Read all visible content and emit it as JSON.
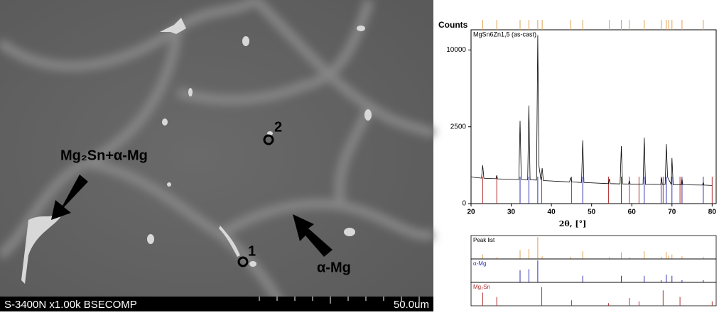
{
  "micrograph": {
    "label_phase_mix": "Mg₂Sn+α-Mg",
    "label_matrix": "α-Mg",
    "point_1": "1",
    "point_2": "2",
    "info": "S-3400N x1.00k BSECOMP",
    "scale": "50.0um"
  },
  "chart_data": {
    "type": "line",
    "title": "MgSn6Zn1,5 (as-cast)",
    "y_label": "Counts",
    "x_label": "2θ, [°]",
    "scale": "sqrt",
    "x": [
      20,
      22.6,
      22.9,
      23.2,
      26.2,
      26.4,
      26.6,
      31.9,
      32.2,
      32.5,
      34.1,
      34.4,
      34.7,
      36.3,
      36.6,
      36.9,
      37.4,
      37.7,
      38.0,
      44.5,
      44.8,
      45.1,
      47.5,
      47.8,
      48.1,
      54.2,
      54.4,
      54.6,
      57.1,
      57.4,
      57.7,
      59.2,
      59.4,
      59.6,
      62.8,
      63.1,
      63.4,
      67.2,
      67.4,
      67.6,
      68.3,
      68.6,
      68.9,
      69.8,
      70.0,
      70.3,
      72.3,
      72.5,
      72.7,
      77.6,
      77.8,
      78.0,
      80
    ],
    "series": [
      {
        "color": "#000000",
        "values": [
          300,
          275,
          625,
          272,
          262,
          340,
          260,
          245,
          2900,
          245,
          240,
          4080,
          240,
          235,
          12000,
          600,
          240,
          530,
          225,
          200,
          280,
          198,
          190,
          1700,
          188,
          170,
          260,
          170,
          165,
          1400,
          165,
          162,
          220,
          162,
          160,
          1850,
          158,
          155,
          280,
          155,
          155,
          1500,
          300,
          155,
          880,
          152,
          150,
          260,
          150,
          145,
          190,
          145,
          140
        ]
      }
    ],
    "xlim": [
      20,
      81
    ],
    "ylim": [
      0,
      12800
    ],
    "xticks": [
      20,
      30,
      40,
      50,
      60,
      70,
      80
    ],
    "yticks": [
      0,
      2500,
      10000
    ],
    "phases": [
      {
        "name": "Peak list",
        "color": "#e0a050",
        "positions": [
          22.9,
          26.4,
          32.2,
          34.4,
          36.6,
          37.7,
          44.8,
          47.8,
          54.4,
          57.4,
          59.4,
          63.1,
          67.4,
          68.6,
          69.2,
          70.0,
          72.5,
          77.8
        ],
        "heights": [
          20,
          8,
          40,
          45,
          100,
          12,
          10,
          35,
          8,
          30,
          8,
          35,
          10,
          32,
          15,
          20,
          12,
          10
        ]
      },
      {
        "name": "α-Mg",
        "color": "#3030b0",
        "positions": [
          32.2,
          34.4,
          36.6,
          47.8,
          57.4,
          63.1,
          67.3,
          68.6,
          70.0,
          72.5,
          77.8
        ],
        "heights": [
          55,
          60,
          100,
          30,
          30,
          30,
          10,
          35,
          30,
          10,
          10
        ]
      },
      {
        "name": "Mg₂Sn",
        "color": "#b03030",
        "positions": [
          22.9,
          26.4,
          37.6,
          45.0,
          54.2,
          59.4,
          61.8,
          67.8,
          72.0,
          80.0
        ],
        "heights": [
          60,
          40,
          85,
          25,
          12,
          35,
          20,
          70,
          40,
          20
        ]
      }
    ]
  }
}
